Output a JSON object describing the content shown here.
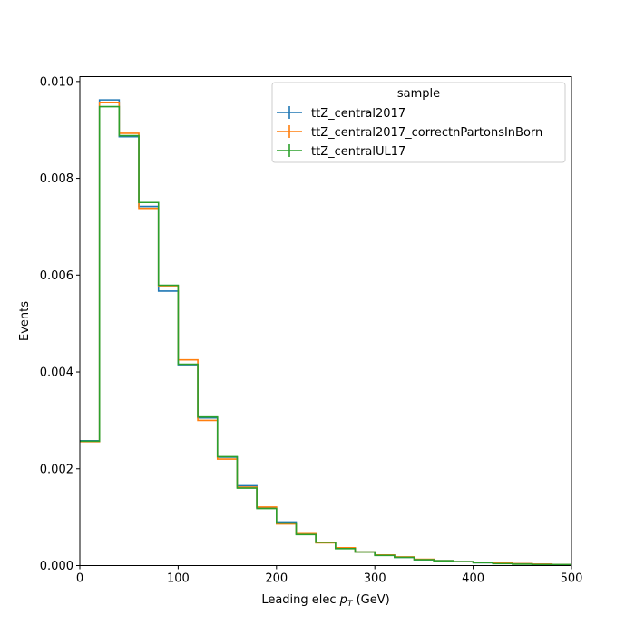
{
  "chart_data": {
    "type": "line",
    "drawstyle": "step-histogram",
    "xlabel_prefix": "Leading elec ",
    "xlabel_var": "p",
    "xlabel_sub": "T",
    "xlabel_suffix": " (GeV)",
    "ylabel": "Events",
    "xlim": [
      0,
      500
    ],
    "ylim": [
      0,
      0.0101
    ],
    "x_ticks": [
      0,
      100,
      200,
      300,
      400,
      500
    ],
    "x_tick_labels": [
      "0",
      "100",
      "200",
      "300",
      "400",
      "500"
    ],
    "y_ticks": [
      0,
      0.002,
      0.004,
      0.006,
      0.008,
      0.01
    ],
    "y_tick_labels": [
      "0.000",
      "0.002",
      "0.004",
      "0.006",
      "0.008",
      "0.010"
    ],
    "grid": false,
    "legend_title": "sample",
    "legend_position": "top-right",
    "bin_edges": [
      0,
      20,
      40,
      60,
      80,
      100,
      120,
      140,
      160,
      180,
      200,
      220,
      240,
      260,
      280,
      300,
      320,
      340,
      360,
      380,
      400,
      420,
      440,
      460,
      480,
      500
    ],
    "series": [
      {
        "name": "ttZ_central2017",
        "color": "#1f77b4",
        "values": [
          0.00258,
          0.00962,
          0.00886,
          0.00742,
          0.00567,
          0.00415,
          0.00305,
          0.00224,
          0.00165,
          0.0012,
          0.0009,
          0.00065,
          0.00048,
          0.00036,
          0.00028,
          0.00022,
          0.00017,
          0.00012,
          0.0001,
          8e-05,
          6e-05,
          5e-05,
          4e-05,
          3e-05,
          2e-05
        ]
      },
      {
        "name": "ttZ_central2017_correctnPartonsInBorn",
        "color": "#ff7f0e",
        "values": [
          0.00256,
          0.00957,
          0.00893,
          0.00738,
          0.00578,
          0.00425,
          0.003,
          0.0022,
          0.00162,
          0.00121,
          0.00086,
          0.00066,
          0.00047,
          0.00037,
          0.00028,
          0.00022,
          0.00018,
          0.00013,
          0.0001,
          8e-05,
          7e-05,
          5e-05,
          4e-05,
          3e-05,
          2e-05
        ]
      },
      {
        "name": "ttZ_centralUL17",
        "color": "#2ca02c",
        "values": [
          0.00257,
          0.00948,
          0.00888,
          0.0075,
          0.00579,
          0.00416,
          0.00307,
          0.00225,
          0.0016,
          0.00118,
          0.00088,
          0.00064,
          0.00048,
          0.00035,
          0.00028,
          0.00021,
          0.00017,
          0.00012,
          0.0001,
          8e-05,
          6e-05,
          4e-05,
          3e-05,
          2e-05,
          2e-05
        ]
      }
    ]
  }
}
